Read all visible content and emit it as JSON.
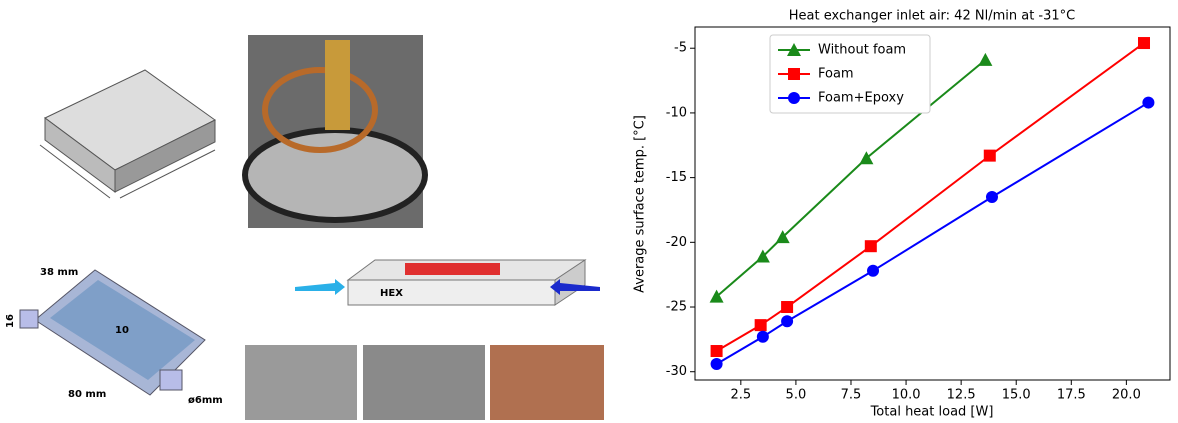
{
  "chart_data": {
    "type": "line",
    "title": "Heat exchanger inlet air: 42 Nl/min at -31°C",
    "x_label": "Total heat load [W]",
    "y_label": "Average surface temp. [°C]",
    "xlim": [
      0.42,
      21.98
    ],
    "ylim": [
      -30.64,
      -3.36
    ],
    "xticks": [
      {
        "value": 2.5,
        "label": "2.5"
      },
      {
        "value": 5,
        "label": "5.0"
      },
      {
        "value": 7.5,
        "label": "7.5"
      },
      {
        "value": 10,
        "label": "10.0"
      },
      {
        "value": 12.5,
        "label": "12.5"
      },
      {
        "value": 15,
        "label": "15.0"
      },
      {
        "value": 17.5,
        "label": "17.5"
      },
      {
        "value": 20,
        "label": "20.0"
      }
    ],
    "yticks": [
      -30,
      -25,
      -20,
      -15,
      -10,
      -5
    ],
    "grid": false,
    "legend": "upper left",
    "series": [
      {
        "name": "Without foam",
        "color": "#1a8a1a",
        "marker": "triangle",
        "x": [
          1.4,
          3.5,
          4.4,
          8.2,
          13.6
        ],
        "values": [
          -24.2,
          -21.1,
          -19.6,
          -13.5,
          -5.9
        ]
      },
      {
        "name": "Foam",
        "color": "#ff0000",
        "marker": "square",
        "x": [
          1.4,
          3.4,
          4.6,
          8.4,
          13.8,
          20.8
        ],
        "values": [
          -28.4,
          -26.4,
          -25.0,
          -20.3,
          -13.3,
          -4.6
        ]
      },
      {
        "name": "Foam+Epoxy",
        "color": "#0000ff",
        "marker": "circle",
        "x": [
          1.4,
          3.5,
          4.6,
          8.5,
          13.9,
          21.0
        ],
        "values": [
          -29.4,
          -27.3,
          -26.1,
          -22.2,
          -16.5,
          -9.2
        ]
      }
    ]
  },
  "figures": {
    "cold_plate_labels": [
      "38 mm",
      "16",
      "10",
      "80 mm",
      "ø6mm"
    ],
    "hex_label": "HEX"
  }
}
